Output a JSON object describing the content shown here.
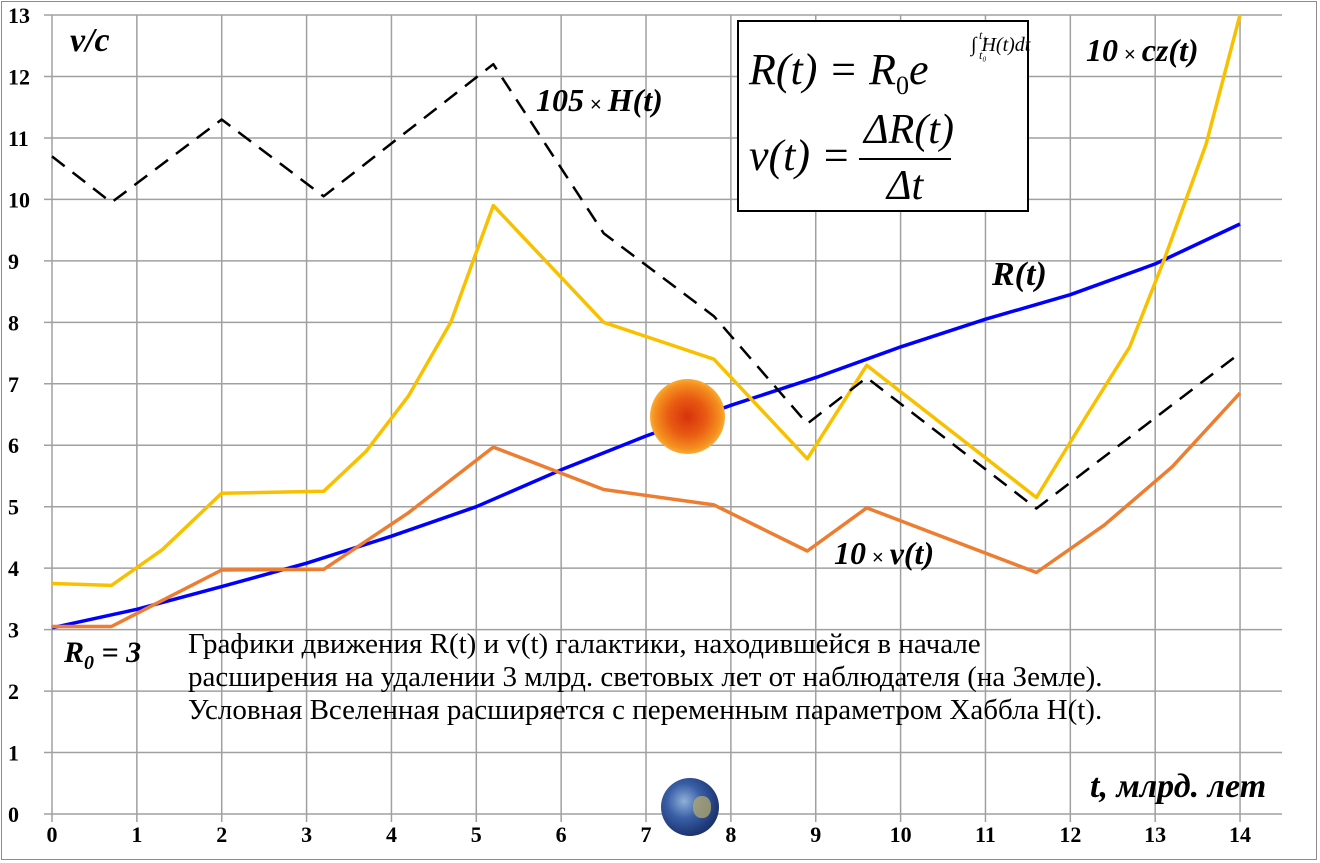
{
  "chart_data": {
    "type": "line",
    "title": "",
    "xlabel": "t, млрд. лет",
    "ylabel": "v/c",
    "xlim": [
      0,
      14
    ],
    "ylim": [
      0,
      13
    ],
    "x_ticks": [
      "0",
      "1",
      "2",
      "3",
      "4",
      "5",
      "6",
      "7",
      "8",
      "9",
      "10",
      "11",
      "12",
      "13",
      "14"
    ],
    "y_ticks": [
      "0",
      "1",
      "2",
      "3",
      "4",
      "5",
      "6",
      "7",
      "8",
      "9",
      "10",
      "11",
      "12",
      "13"
    ],
    "grid": true,
    "series": [
      {
        "name": "105 × H(t)",
        "style": "dashed",
        "color": "#000000",
        "points": [
          [
            0,
            10.7
          ],
          [
            0.7,
            9.95
          ],
          [
            2,
            11.3
          ],
          [
            3.2,
            10.05
          ],
          [
            5.2,
            12.2
          ],
          [
            6.5,
            9.45
          ],
          [
            7.8,
            8.1
          ],
          [
            8.9,
            6.35
          ],
          [
            9.6,
            7.1
          ],
          [
            11.6,
            4.97
          ],
          [
            14,
            7.5
          ]
        ]
      },
      {
        "name": "10 × cz(t)",
        "style": "solid",
        "color": "#F8C100",
        "points": [
          [
            0,
            3.75
          ],
          [
            0.7,
            3.72
          ],
          [
            1.3,
            4.3
          ],
          [
            2,
            5.22
          ],
          [
            3.2,
            5.25
          ],
          [
            3.7,
            5.9
          ],
          [
            4.2,
            6.8
          ],
          [
            4.7,
            8.0
          ],
          [
            5.2,
            9.9
          ],
          [
            6.5,
            8.0
          ],
          [
            7.8,
            7.4
          ],
          [
            8.9,
            5.78
          ],
          [
            9.6,
            7.3
          ],
          [
            11.6,
            5.15
          ],
          [
            12.2,
            6.5
          ],
          [
            12.7,
            7.6
          ],
          [
            13.1,
            9.0
          ],
          [
            13.6,
            10.9
          ],
          [
            14,
            13.0
          ]
        ]
      },
      {
        "name": "10 × v(t)",
        "style": "solid",
        "color": "#ED7D31",
        "points": [
          [
            0,
            3.05
          ],
          [
            0.7,
            3.05
          ],
          [
            2,
            3.97
          ],
          [
            3.2,
            3.98
          ],
          [
            4.2,
            4.9
          ],
          [
            5.2,
            5.97
          ],
          [
            6.5,
            5.28
          ],
          [
            7.8,
            5.03
          ],
          [
            8.9,
            4.28
          ],
          [
            9.6,
            4.98
          ],
          [
            11.6,
            3.93
          ],
          [
            12.4,
            4.7
          ],
          [
            13.2,
            5.65
          ],
          [
            14,
            6.85
          ]
        ]
      },
      {
        "name": "R(t)",
        "style": "solid",
        "color": "#0000FF",
        "points": [
          [
            0,
            3.03
          ],
          [
            1,
            3.33
          ],
          [
            2,
            3.7
          ],
          [
            3,
            4.08
          ],
          [
            4,
            4.52
          ],
          [
            5,
            5.0
          ],
          [
            6,
            5.6
          ],
          [
            7,
            6.15
          ],
          [
            8,
            6.65
          ],
          [
            9,
            7.1
          ],
          [
            10,
            7.6
          ],
          [
            11,
            8.05
          ],
          [
            12,
            8.45
          ],
          [
            13,
            8.95
          ],
          [
            14,
            9.6
          ]
        ]
      }
    ],
    "annotations": [
      "v/c",
      "105 × H(t)",
      "10 × cz(t)",
      "R(t)",
      "10 × v(t)",
      "R0 = 3",
      "t, млрд. лет"
    ],
    "legend": "inline labels"
  },
  "labels": {
    "y_axis": "v/c",
    "x_axis": "t, млрд. лет",
    "h_coef": "105",
    "h_name": "H(t)",
    "cz_coef": "10",
    "cz_name": "cz(t)",
    "v_coef": "10",
    "v_name": "v(t)",
    "r_name": "R(t)",
    "times": "×",
    "r0_main": "R",
    "r0_sub": "0",
    "r0_value": "= 3"
  },
  "formula": {
    "line1_lhs": "R(t) = R",
    "line1_sub": "0",
    "line1_e": "e",
    "line1_exp": "∫ H(t)dt",
    "line1_lim_top": "t₁",
    "line1_lim_bottom": "t₀",
    "line2_lhs": "v(t) =",
    "line2_num": "ΔR(t)",
    "line2_den": "Δt"
  },
  "caption": {
    "line1": "Графики движения R(t) и v(t) галактики, находившейся в начале",
    "line2": "расширения на удалении 3 млрд. световых лет от наблюдателя (на Земле).",
    "line3": "Условная Вселенная расширяется с переменным параметром Хаббла H(t)."
  },
  "images": {
    "sun": "sun-icon",
    "earth": "earth-icon"
  }
}
